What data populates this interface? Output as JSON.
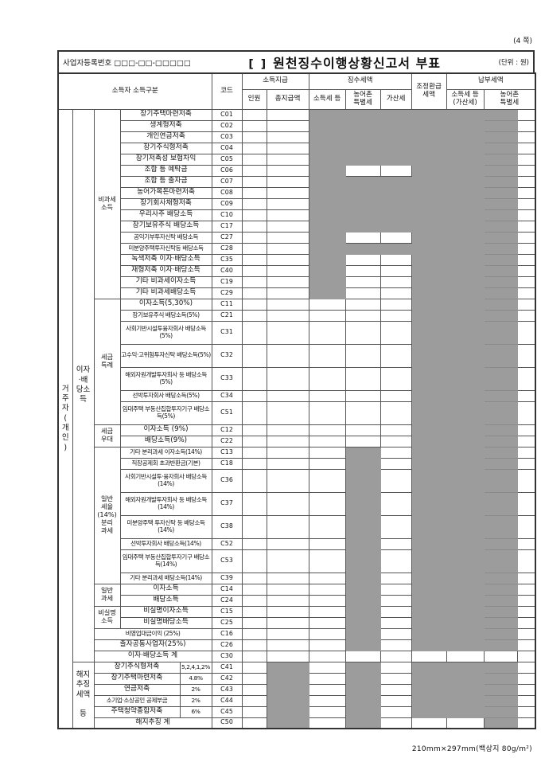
{
  "page": {
    "page_marker": "(4 쪽)",
    "paper_note": "210mm×297mm(백상지 80g/m²)"
  },
  "title_bar": {
    "business_reg": "사업자등록번호 □□□-□□-□□□□□",
    "checkbox_brackets": "[  ]",
    "title": "원천징수이행상황신고서 부표",
    "unit": "(단위 : 원)"
  },
  "header": {
    "income_earner": "소득자 소득구분",
    "code": "코드",
    "income_payment": "소득지급",
    "person_count": "인원",
    "total_payment": "총지급액",
    "withholding": "징수세액",
    "income_tax": "소득세 등",
    "rural_tax": "농어촌\n특별세",
    "penalty_tax": "가산세",
    "adjusted_refund": "조정환급\n세액",
    "payable": "납부세액",
    "payable_income_tax": "소득세 등\n(가산세)",
    "payable_rural_tax": "농어촌\n특별세"
  },
  "rows": [
    {
      "c": "C01",
      "l": "장기주택마련저축",
      "s": "WWGGGGGGW",
      "a": {
        "t": "거\n주\n자\n(\n개\n인\n)",
        "rs": 47
      },
      "b": {
        "t": "이자\n·배\n당소\n득",
        "rs": 41
      },
      "g": {
        "t": "비과세\n소득",
        "rs": 17
      }
    },
    {
      "c": "C02",
      "l": "생계형저축",
      "s": "WWGGGGGGW"
    },
    {
      "c": "C03",
      "l": "개인연금저축",
      "s": "WWGGGGGGW"
    },
    {
      "c": "C04",
      "l": "장기주식형저축",
      "s": "WWGGGGGGW"
    },
    {
      "c": "C05",
      "l": "장기저축성 보험차익",
      "s": "WWGGGGGGW"
    },
    {
      "c": "C06",
      "l": "조합 등 예탁금",
      "s": "WWGWWGGGW"
    },
    {
      "c": "C07",
      "l": "조합 등 출자금",
      "s": "WWGGGGGGW"
    },
    {
      "c": "C08",
      "l": "농어가목돈마련저축",
      "s": "WWGGGGGGW"
    },
    {
      "c": "C09",
      "l": "장기회사채형저축",
      "s": "WWGGGGGGW"
    },
    {
      "c": "C10",
      "l": "우리사주 배당소득",
      "s": "WWGGGGGGW"
    },
    {
      "c": "C17",
      "l": "장기보유주식 배당소득",
      "s": "WWGGGGGGW"
    },
    {
      "c": "C27",
      "l": "공익기부투자신탁 배당소득",
      "s": "WWGWWGGGW"
    },
    {
      "c": "C28",
      "l": "미분양주택투자신탁등 배당소득",
      "s": "WWGGGGGGW"
    },
    {
      "c": "C35",
      "l": "녹색저축 이자·배당소득",
      "s": "WWGWWGGGW"
    },
    {
      "c": "C40",
      "l": "재형저축 이자·배당소득",
      "s": "WWGWWGGGW"
    },
    {
      "c": "C19",
      "l": "기타 비과세이자소득",
      "s": "WWGWWGGGW"
    },
    {
      "c": "C29",
      "l": "기타 비과세배당소득",
      "s": "WWGWWGGGW"
    },
    {
      "c": "C11",
      "l": "이자소득(5,30%)",
      "s": "WWWWWGGGW",
      "g": {
        "t": "세금\n특례",
        "rs": 7
      }
    },
    {
      "c": "C21",
      "l": "장기보유주식 배당소득(5%)",
      "s": "WWWWWGGGW"
    },
    {
      "c": "C31",
      "l": "사회기반시설투융자회사 배당소득(5%)",
      "s": "WWWWWGGGW",
      "tall": 1
    },
    {
      "c": "C32",
      "l": "고수익·고위험투자신탁 배당소득(5%)",
      "s": "WWWWWGGGW",
      "tall": 1
    },
    {
      "c": "C33",
      "l": "해외자원개발투자회사 등 배당소득(5%)",
      "s": "WWWWWGGGW",
      "tall": 1
    },
    {
      "c": "C34",
      "l": "선박투자회사 배당소득(5%)",
      "s": "WWWWWGGGW"
    },
    {
      "c": "C51",
      "l": "임대주택 부동산집합투자기구 배당소득(5%)",
      "s": "WWWWWGGGW",
      "tall": 1
    },
    {
      "c": "C12",
      "l": "이자소득 (9%)",
      "s": "WWWWWGGGW",
      "g": {
        "t": "세금\n우대",
        "rs": 2
      }
    },
    {
      "c": "C22",
      "l": "배당소득(9%)",
      "s": "WWWWWGGGW"
    },
    {
      "c": "C13",
      "l": "기타 분리과세 이자소득(14%)",
      "s": "WWWGWGGGW",
      "g": {
        "t": "일반\n세율\n(14%)\n분리\n과세",
        "rs": 8
      }
    },
    {
      "c": "C18",
      "l": "직장공제회 초과반환금(기본)",
      "s": "WWWGWGGGW"
    },
    {
      "c": "C36",
      "l": "사회기반시설투·융자회사 배당소득(14%)",
      "s": "WWWGWGGGW",
      "tall": 1
    },
    {
      "c": "C37",
      "l": "해외자원개발투자회사 등 배당소득(14%)",
      "s": "WWWGWGGGW",
      "tall": 1
    },
    {
      "c": "C38",
      "l": "미분양주택 투자신탁 등 배당소득(14%)",
      "s": "WWWGWGGGW",
      "tall": 1
    },
    {
      "c": "C52",
      "l": "선박투자회사 배당소득(14%)",
      "s": "WWWGWGGGW"
    },
    {
      "c": "C53",
      "l": "임대주택 부동산집합투자기구 배당소득(14%)",
      "s": "WWWGWGGGW",
      "tall": 1
    },
    {
      "c": "C39",
      "l": "기타 분리과세 배당소득(14%)",
      "s": "WWWGWGGGW"
    },
    {
      "c": "C14",
      "l": "이자소득",
      "s": "WWWGWGGGW",
      "g": {
        "t": "일반\n과세",
        "rs": 2
      }
    },
    {
      "c": "C24",
      "l": "배당소득",
      "s": "WWWGWGGGW"
    },
    {
      "c": "C15",
      "l": "비실명이자소득",
      "s": "WWWGWGGGW",
      "g": {
        "t": "비실명\n소득",
        "rs": 2
      }
    },
    {
      "c": "C25",
      "l": "비실명배당소득",
      "s": "WWWGWGGGW"
    },
    {
      "c": "C16",
      "l": "비영업대금이익 (25%)",
      "s": "WWWGWGGGW",
      "ls": 3
    },
    {
      "c": "C26",
      "l": "출자공동사업자(25%)",
      "s": "WWWGWGGGW",
      "ls": 3
    },
    {
      "c": "C30",
      "l": "이자·배당소득 계",
      "s": "WWWWWWWWW",
      "ls": 3
    },
    {
      "c": "C41",
      "l": "장기주식형저축",
      "s": "WGWGWGGGW",
      "rate": "5,2,4,1,2%",
      "b": {
        "t": "해지\n추징\n세액\n\n등",
        "rs": 6
      }
    },
    {
      "c": "C42",
      "l": "장기주택마련저축",
      "s": "WGWGWGGGW",
      "rate": "4.8%"
    },
    {
      "c": "C43",
      "l": "연금저축",
      "s": "WGWGWGGGW",
      "rate": "2%"
    },
    {
      "c": "C44",
      "l": "소기업·소상공인 공제부금",
      "s": "WGWGWGGGW",
      "rate": "2%"
    },
    {
      "c": "C45",
      "l": "주택청약종합저축",
      "s": "WGWGWGGGW",
      "rate": "6%"
    },
    {
      "c": "C50",
      "l": "해지추징 계",
      "s": "WGWGWWWGW",
      "ls": 3
    }
  ]
}
